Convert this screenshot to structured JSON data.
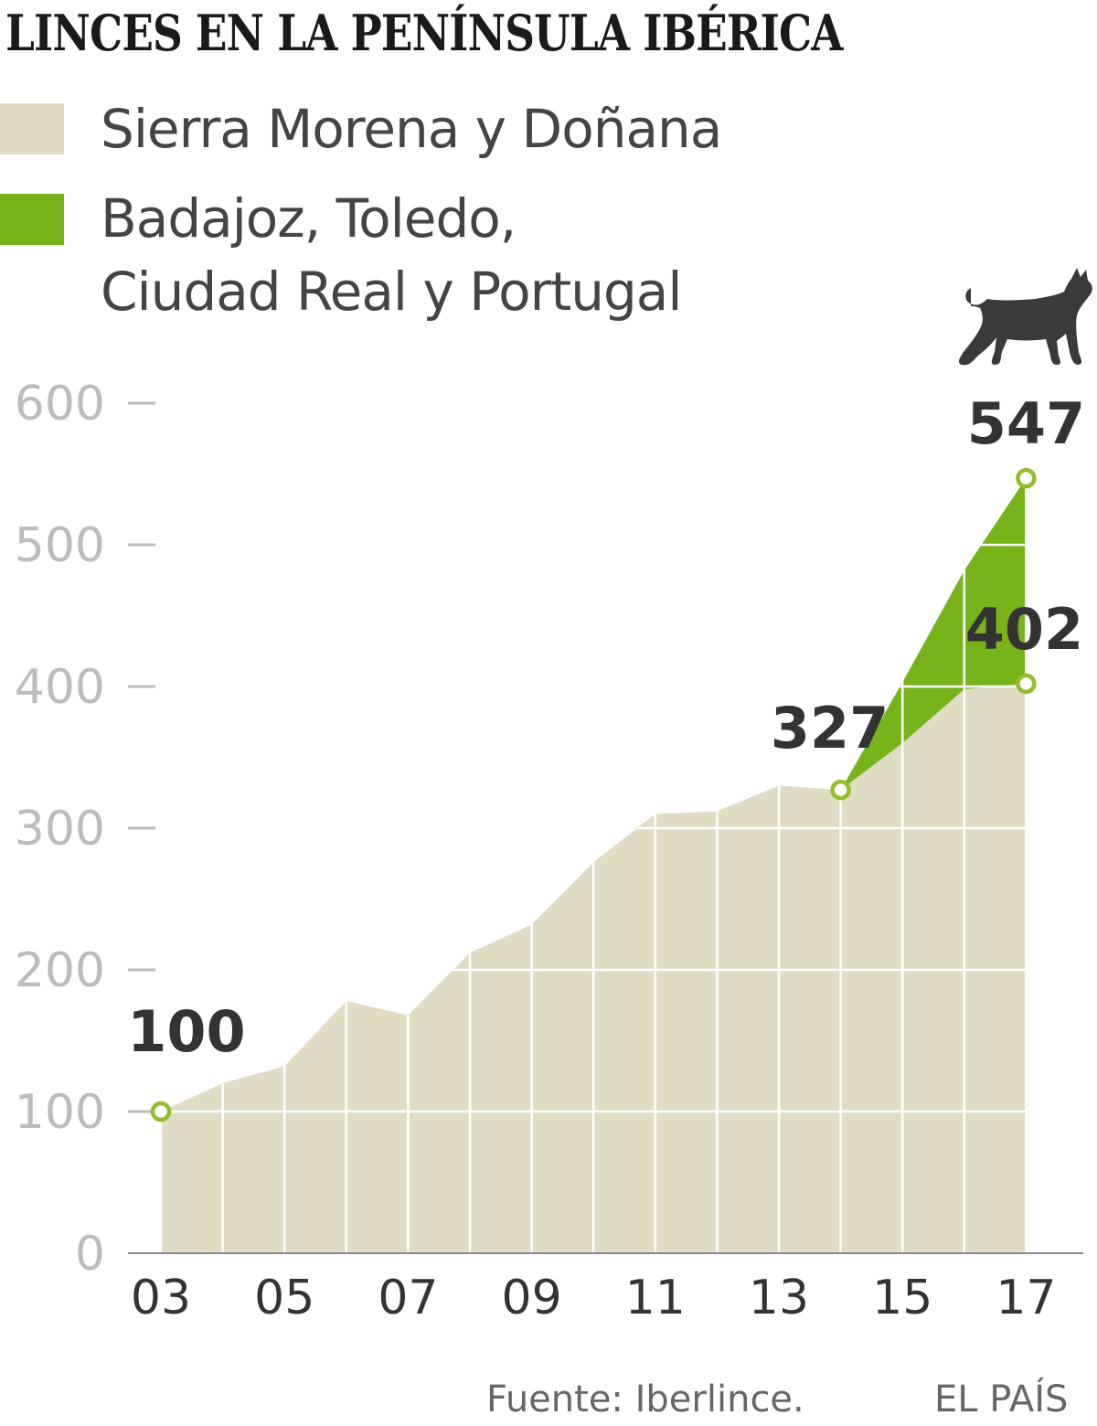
{
  "title": "LINCES EN LA PENÍNSULA IBÉRICA",
  "legend": [
    {
      "label": "Sierra Morena y Doñana",
      "color": "#e0ddc4"
    },
    {
      "label_lines": [
        "Badajoz, Toledo,",
        "Ciudad Real y Portugal"
      ],
      "color": "#77b41c"
    }
  ],
  "icon": "lynx-icon",
  "source": "Fuente: Iberlince.",
  "brand": "EL PAÍS",
  "chart_data": {
    "type": "area",
    "x": [
      2003,
      2004,
      2005,
      2006,
      2007,
      2008,
      2009,
      2010,
      2011,
      2012,
      2013,
      2014,
      2015,
      2016,
      2017
    ],
    "x_tick_values": [
      2003,
      2005,
      2007,
      2009,
      2011,
      2013,
      2015,
      2017
    ],
    "x_tick_labels": [
      "03",
      "05",
      "07",
      "09",
      "11",
      "13",
      "15",
      "17"
    ],
    "y_ticks": [
      0,
      100,
      200,
      300,
      400,
      500,
      600
    ],
    "ylim": [
      0,
      600
    ],
    "series": [
      {
        "name": "Sierra Morena y Doñana",
        "values": [
          100,
          120,
          132,
          178,
          168,
          212,
          232,
          276,
          310,
          312,
          330,
          327,
          360,
          398,
          402
        ]
      },
      {
        "name": "Badajoz, Toledo, Ciudad Real y Portugal",
        "values": [
          null,
          null,
          null,
          null,
          null,
          null,
          null,
          null,
          null,
          null,
          null,
          0,
          43,
          84,
          145
        ]
      }
    ],
    "total": [
      100,
      120,
      132,
      178,
      168,
      212,
      232,
      276,
      310,
      312,
      330,
      327,
      403,
      482,
      547
    ],
    "annotations": [
      {
        "x": 2003,
        "y": 100,
        "label": "100"
      },
      {
        "x": 2014,
        "y": 327,
        "label": "327"
      },
      {
        "x": 2017,
        "y": 402,
        "label": "402"
      },
      {
        "x": 2017,
        "y": 547,
        "label": "547"
      }
    ],
    "grid": true
  }
}
